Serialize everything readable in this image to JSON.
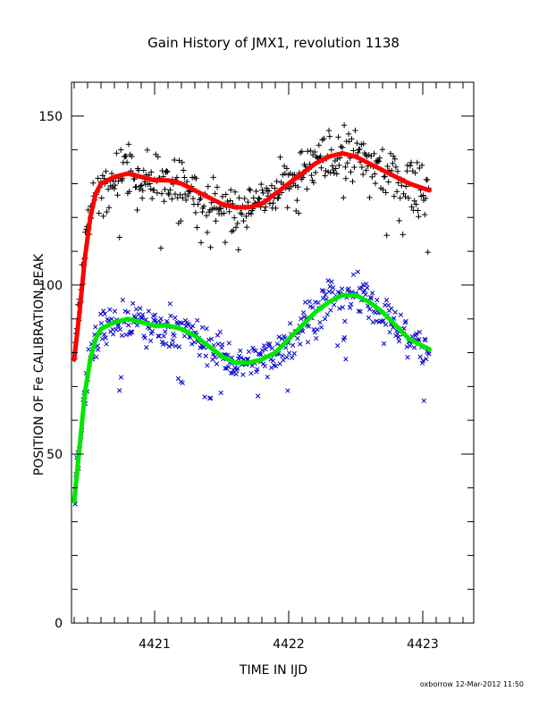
{
  "chart_data": {
    "type": "scatter",
    "title": "Gain History of JMX1, revolution 1138",
    "xlabel": "TIME IN IJD",
    "ylabel": "POSITION OF Fe CALIBRATION PEAK",
    "xlim": [
      4420.38,
      4423.38
    ],
    "ylim": [
      0,
      160
    ],
    "xticks": [
      4421,
      4422,
      4423
    ],
    "yticks": [
      0,
      50,
      100,
      150
    ],
    "grid": false,
    "footer": "oxborrow 12-Mar-2012 11:50",
    "series": [
      {
        "kind": "scatter",
        "marker": "plus",
        "color": "#000000",
        "center": [
          [
            4420.4,
            78
          ],
          [
            4420.45,
            98
          ],
          [
            4420.5,
            118
          ],
          [
            4420.55,
            126
          ],
          [
            4420.6,
            130
          ],
          [
            4420.7,
            132
          ],
          [
            4420.8,
            133
          ],
          [
            4420.9,
            132
          ],
          [
            4421.0,
            131
          ],
          [
            4421.1,
            131
          ],
          [
            4421.2,
            130
          ],
          [
            4421.3,
            128
          ],
          [
            4421.4,
            126
          ],
          [
            4421.5,
            124
          ],
          [
            4421.6,
            123
          ],
          [
            4421.7,
            123
          ],
          [
            4421.8,
            124
          ],
          [
            4421.9,
            127
          ],
          [
            4422.0,
            130
          ],
          [
            4422.1,
            133
          ],
          [
            4422.2,
            136
          ],
          [
            4422.3,
            138
          ],
          [
            4422.4,
            139
          ],
          [
            4422.5,
            138
          ],
          [
            4422.6,
            136
          ],
          [
            4422.7,
            134
          ],
          [
            4422.8,
            132
          ],
          [
            4422.9,
            130
          ],
          [
            4423.05,
            128
          ]
        ],
        "scatter": 4,
        "count": 420
      },
      {
        "kind": "line",
        "color": "#ff0000",
        "points": [
          [
            4420.4,
            78
          ],
          [
            4420.44,
            92
          ],
          [
            4420.48,
            108
          ],
          [
            4420.52,
            120
          ],
          [
            4420.56,
            127
          ],
          [
            4420.6,
            130
          ],
          [
            4420.7,
            132
          ],
          [
            4420.8,
            133
          ],
          [
            4420.9,
            132
          ],
          [
            4421.0,
            131
          ],
          [
            4421.1,
            131
          ],
          [
            4421.2,
            130
          ],
          [
            4421.3,
            128
          ],
          [
            4421.4,
            126
          ],
          [
            4421.5,
            124
          ],
          [
            4421.6,
            123
          ],
          [
            4421.7,
            123
          ],
          [
            4421.8,
            124
          ],
          [
            4421.9,
            127
          ],
          [
            4422.0,
            130
          ],
          [
            4422.1,
            133
          ],
          [
            4422.2,
            136
          ],
          [
            4422.3,
            138
          ],
          [
            4422.4,
            139
          ],
          [
            4422.5,
            138
          ],
          [
            4422.6,
            136
          ],
          [
            4422.7,
            134
          ],
          [
            4422.8,
            132
          ],
          [
            4422.9,
            130
          ],
          [
            4423.05,
            128
          ]
        ]
      },
      {
        "kind": "scatter",
        "marker": "cross",
        "color": "#0000cc",
        "center": [
          [
            4420.4,
            36
          ],
          [
            4420.45,
            58
          ],
          [
            4420.5,
            74
          ],
          [
            4420.55,
            82
          ],
          [
            4420.6,
            87
          ],
          [
            4420.7,
            89
          ],
          [
            4420.8,
            90
          ],
          [
            4420.9,
            89
          ],
          [
            4421.0,
            88
          ],
          [
            4421.1,
            88
          ],
          [
            4421.2,
            87
          ],
          [
            4421.3,
            85
          ],
          [
            4421.4,
            82
          ],
          [
            4421.5,
            79
          ],
          [
            4421.6,
            77
          ],
          [
            4421.7,
            77
          ],
          [
            4421.8,
            78
          ],
          [
            4421.9,
            80
          ],
          [
            4422.0,
            84
          ],
          [
            4422.1,
            88
          ],
          [
            4422.2,
            92
          ],
          [
            4422.3,
            95
          ],
          [
            4422.4,
            97
          ],
          [
            4422.5,
            97
          ],
          [
            4422.6,
            95
          ],
          [
            4422.7,
            92
          ],
          [
            4422.8,
            88
          ],
          [
            4422.9,
            84
          ],
          [
            4423.05,
            81
          ]
        ],
        "scatter": 3,
        "count": 420
      },
      {
        "kind": "line",
        "color": "#00e600",
        "points": [
          [
            4420.4,
            36
          ],
          [
            4420.44,
            52
          ],
          [
            4420.48,
            68
          ],
          [
            4420.52,
            78
          ],
          [
            4420.56,
            84
          ],
          [
            4420.6,
            87
          ],
          [
            4420.7,
            89
          ],
          [
            4420.8,
            90
          ],
          [
            4420.9,
            89
          ],
          [
            4421.0,
            88
          ],
          [
            4421.1,
            88
          ],
          [
            4421.2,
            87
          ],
          [
            4421.3,
            85
          ],
          [
            4421.4,
            82
          ],
          [
            4421.5,
            79
          ],
          [
            4421.6,
            77
          ],
          [
            4421.7,
            77
          ],
          [
            4421.8,
            78
          ],
          [
            4421.9,
            80
          ],
          [
            4422.0,
            84
          ],
          [
            4422.1,
            88
          ],
          [
            4422.2,
            92
          ],
          [
            4422.3,
            95
          ],
          [
            4422.4,
            97
          ],
          [
            4422.5,
            97
          ],
          [
            4422.6,
            95
          ],
          [
            4422.7,
            92
          ],
          [
            4422.8,
            88
          ],
          [
            4422.9,
            84
          ],
          [
            4423.05,
            81
          ]
        ]
      }
    ]
  }
}
